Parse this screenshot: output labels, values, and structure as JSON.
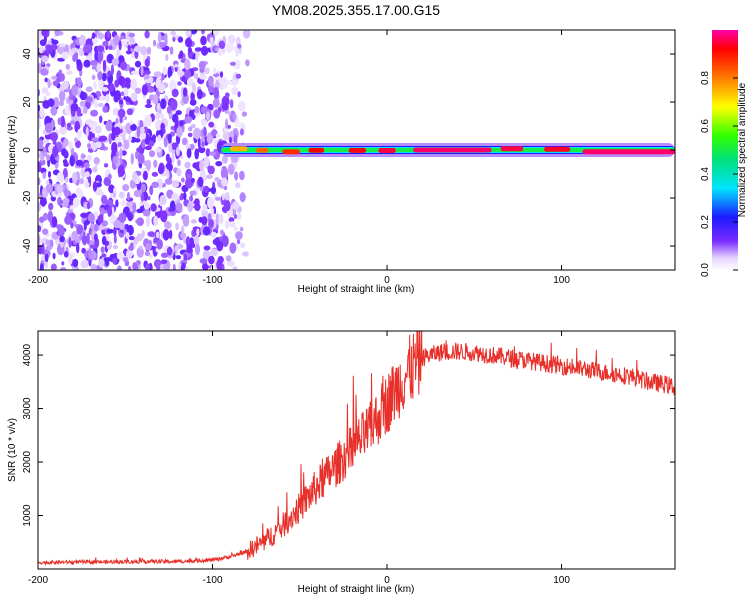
{
  "title": "YM08.2025.355.17.00.G15",
  "chart_data": [
    {
      "type": "heatmap",
      "name": "spectrogram",
      "xlabel": "Height of straight line (km)",
      "ylabel": "Frequency (Hz)",
      "xlim": [
        -200,
        165
      ],
      "ylim": [
        -50,
        50
      ],
      "xticks": [
        -200,
        -100,
        0,
        100
      ],
      "yticks": [
        -40,
        -20,
        0,
        20,
        40
      ],
      "colorbar": {
        "label": "Normalized spectral amplitude",
        "range": [
          0,
          1
        ],
        "ticks": [
          0.0,
          0.2,
          0.4,
          0.6,
          0.8
        ]
      },
      "description_series": [
        {
          "name": "noise region",
          "x_range": [
            -200,
            -80
          ],
          "amplitude_range": [
            0.0,
            0.15
          ]
        },
        {
          "name": "signal band",
          "x_range": [
            -95,
            165
          ],
          "freq_hz": 0,
          "amplitude_range": [
            0.2,
            1.0
          ]
        }
      ]
    },
    {
      "type": "line",
      "name": "snr",
      "xlabel": "Height of straight line (km)",
      "ylabel": "SNR (10 * v/v)",
      "xlim": [
        -200,
        165
      ],
      "ylim": [
        0,
        4450
      ],
      "xticks": [
        -200,
        -100,
        0,
        100
      ],
      "yticks": [
        1000,
        2000,
        3000,
        4000
      ],
      "color": "#e8302a",
      "series": [
        {
          "name": "SNR",
          "x": [
            -200,
            -180,
            -160,
            -140,
            -120,
            -100,
            -90,
            -80,
            -70,
            -60,
            -50,
            -40,
            -30,
            -20,
            -10,
            0,
            10,
            20,
            30,
            40,
            50,
            60,
            70,
            80,
            90,
            100,
            110,
            120,
            130,
            140,
            150,
            160,
            165
          ],
          "y": [
            120,
            130,
            130,
            140,
            140,
            170,
            230,
            330,
            520,
            800,
            1150,
            1550,
            1900,
            2250,
            2600,
            3100,
            3600,
            3950,
            4050,
            4070,
            4050,
            4000,
            3950,
            3900,
            3850,
            3800,
            3750,
            3700,
            3650,
            3600,
            3500,
            3450,
            3400
          ]
        }
      ]
    }
  ]
}
